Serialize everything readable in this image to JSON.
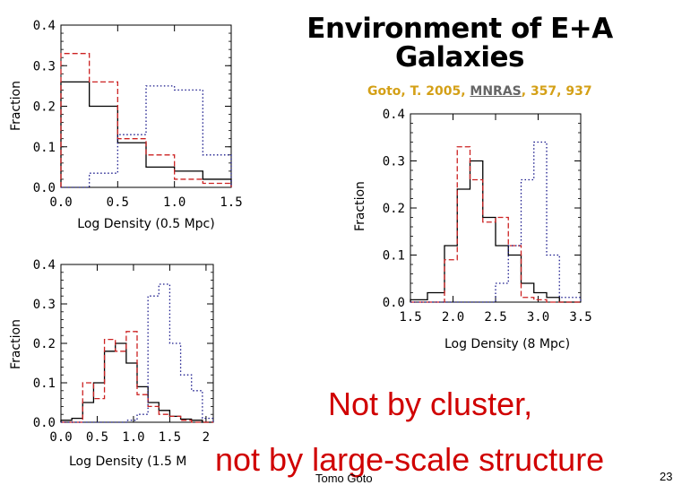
{
  "title": "Environment of E+A Galaxies",
  "citation": {
    "authors": "Goto, T. 2005,",
    "journal": "MNRAS",
    "rest": ", 357, 937"
  },
  "notes": [
    "Not by cluster,",
    "not  by large-scale structure"
  ],
  "footer": {
    "author": "Tomo Goto",
    "page": "23"
  },
  "colors": {
    "ea": "#cc2222",
    "all": "#1a1a8c",
    "hd": "#000000",
    "title": "#000000",
    "citation": "#d4a017",
    "note": "#d00000"
  },
  "chart_data": [
    {
      "type": "histogram",
      "xlabel": "Log Density (0.5 Mpc)",
      "ylabel": "Fraction",
      "xlim": [
        0,
        1.5
      ],
      "ylim": [
        0,
        0.4
      ],
      "xticks": [
        "0.0",
        "0.5",
        "1.0",
        "1.5"
      ],
      "yticks": [
        "0.0",
        "0.1",
        "0.2",
        "0.3",
        "0.4"
      ],
      "edges": [
        0,
        0.25,
        0.5,
        0.75,
        1.0,
        1.25,
        1.5
      ],
      "series": [
        {
          "style": "solid-black",
          "values": [
            0.26,
            0.2,
            0.11,
            0.05,
            0.04,
            0.02
          ]
        },
        {
          "style": "dashed-red",
          "values": [
            0.33,
            0.26,
            0.12,
            0.08,
            0.02,
            0.01
          ]
        },
        {
          "style": "dotted-blue",
          "values": [
            0.0,
            0.035,
            0.13,
            0.25,
            0.24,
            0.08
          ]
        }
      ]
    },
    {
      "type": "histogram",
      "xlabel": "Log Density (1.5 M",
      "ylabel": "Fraction",
      "xlim": [
        0,
        2.1
      ],
      "ylim": [
        0,
        0.4
      ],
      "xticks": [
        "0.0",
        "0.5",
        "1.0",
        "1.5",
        "2"
      ],
      "yticks": [
        "0.0",
        "0.1",
        "0.2",
        "0.3",
        "0.4"
      ],
      "edges": [
        0,
        0.15,
        0.3,
        0.45,
        0.6,
        0.75,
        0.9,
        1.05,
        1.2,
        1.35,
        1.5,
        1.65,
        1.8,
        1.95,
        2.1
      ],
      "series": [
        {
          "style": "solid-black",
          "values": [
            0.005,
            0.01,
            0.05,
            0.1,
            0.18,
            0.2,
            0.15,
            0.09,
            0.05,
            0.03,
            0.015,
            0.008,
            0.005,
            0.0
          ]
        },
        {
          "style": "dashed-red",
          "values": [
            0.0,
            0.0,
            0.1,
            0.06,
            0.21,
            0.18,
            0.23,
            0.07,
            0.04,
            0.02,
            0.015,
            0.005,
            0.0,
            0.0
          ]
        },
        {
          "style": "dotted-blue",
          "values": [
            0.0,
            0.0,
            0.0,
            0.0,
            0.0,
            0.0,
            0.005,
            0.02,
            0.32,
            0.35,
            0.2,
            0.12,
            0.08,
            0.01
          ]
        }
      ]
    },
    {
      "type": "histogram",
      "xlabel": "Log Density (8 Mpc)",
      "ylabel": "Fraction",
      "xlim": [
        1.5,
        3.5
      ],
      "ylim": [
        0,
        0.4
      ],
      "xticks": [
        "1.5",
        "2.0",
        "2.5",
        "3.0",
        "3.5"
      ],
      "yticks": [
        "0.0",
        "0.1",
        "0.2",
        "0.3",
        "0.4"
      ],
      "edges": [
        1.5,
        1.7,
        1.9,
        2.05,
        2.2,
        2.35,
        2.5,
        2.65,
        2.8,
        2.95,
        3.1,
        3.25,
        3.5
      ],
      "series": [
        {
          "style": "solid-black",
          "values": [
            0.005,
            0.02,
            0.12,
            0.24,
            0.3,
            0.18,
            0.12,
            0.1,
            0.04,
            0.02,
            0.01,
            0.0
          ]
        },
        {
          "style": "dashed-red",
          "values": [
            0.0,
            0.0,
            0.09,
            0.33,
            0.26,
            0.17,
            0.18,
            0.12,
            0.01,
            0.005,
            0.0,
            0.0
          ]
        },
        {
          "style": "dotted-blue",
          "values": [
            0.0,
            0.0,
            0.0,
            0.0,
            0.0,
            0.0,
            0.04,
            0.12,
            0.26,
            0.34,
            0.1,
            0.01
          ]
        }
      ]
    }
  ]
}
